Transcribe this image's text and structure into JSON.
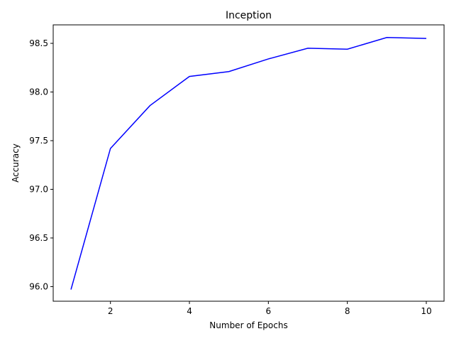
{
  "chart_data": {
    "type": "line",
    "title": "Inception",
    "xlabel": "Number of Epochs",
    "ylabel": "Accuracy",
    "x": [
      1,
      2,
      3,
      4,
      5,
      6,
      7,
      8,
      9,
      10
    ],
    "series": [
      {
        "values": [
          95.97,
          97.42,
          97.86,
          98.16,
          98.21,
          98.34,
          98.45,
          98.44,
          98.56,
          98.55
        ],
        "color": "#0000ff"
      }
    ],
    "xlim": [
      0.55,
      10.45
    ],
    "ylim": [
      95.85,
      98.69
    ],
    "xticks": [
      2,
      4,
      6,
      8,
      10
    ],
    "xtick_labels": [
      "2",
      "4",
      "6",
      "8",
      "10"
    ],
    "yticks": [
      96.0,
      96.5,
      97.0,
      97.5,
      98.0,
      98.5
    ],
    "ytick_labels": [
      "96.0",
      "96.5",
      "97.0",
      "97.5",
      "98.0",
      "98.5"
    ],
    "grid": false,
    "legend": "none"
  }
}
